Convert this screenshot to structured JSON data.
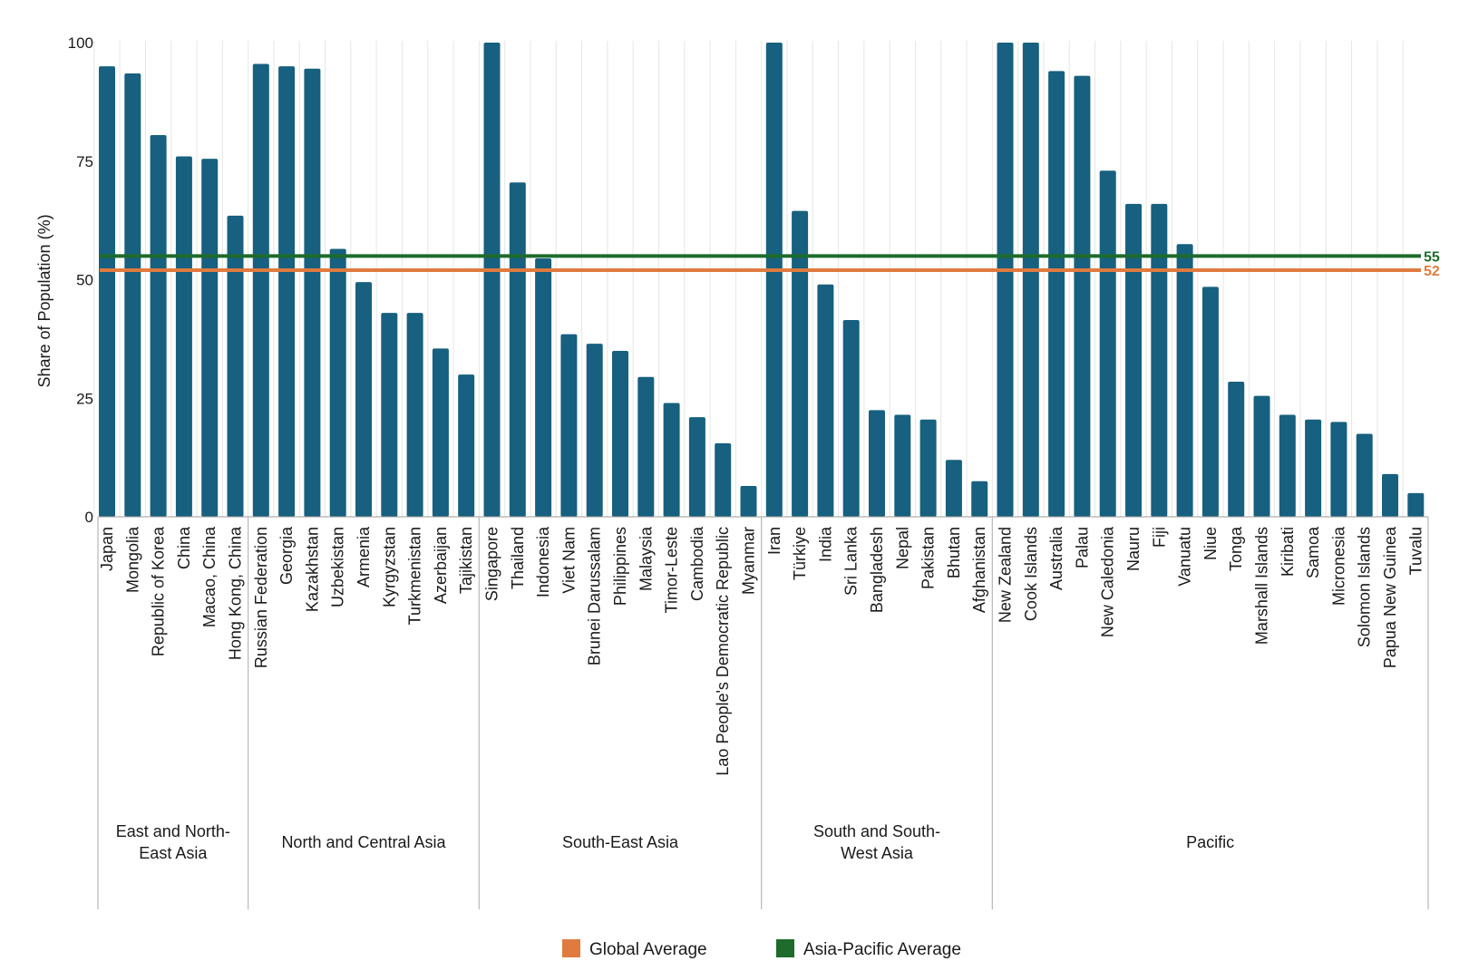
{
  "chart_data": {
    "type": "bar",
    "ylabel": "Share of Population (%)",
    "ylim": [
      0,
      100
    ],
    "yticks": [
      0,
      25,
      50,
      75,
      100
    ],
    "grid": "vertical",
    "bar_color": "#17607f",
    "groups": [
      {
        "name": "East and North-\nEast Asia",
        "categories": [
          "Japan",
          "Mongolia",
          "Republic of Korea",
          "China",
          "Macao, China",
          "Hong Kong, China"
        ],
        "values": [
          95,
          93.5,
          80.5,
          76,
          75.5,
          63.5
        ]
      },
      {
        "name": "North and Central Asia",
        "categories": [
          "Russian Federation",
          "Georgia",
          "Kazakhstan",
          "Uzbekistan",
          "Armenia",
          "Kyrgyzstan",
          "Turkmenistan",
          "Azerbaijan",
          "Tajikistan"
        ],
        "values": [
          95.5,
          95,
          94.5,
          56.5,
          49.5,
          43,
          43,
          35.5,
          30
        ]
      },
      {
        "name": "South-East Asia",
        "categories": [
          "Singapore",
          "Thailand",
          "Indonesia",
          "Viet Nam",
          "Brunei Darussalam",
          "Philippines",
          "Malaysia",
          "Timor-Leste",
          "Cambodia",
          "Lao People's Democratic Republic",
          "Myanmar"
        ],
        "values": [
          100,
          70.5,
          54.5,
          38.5,
          36.5,
          35,
          29.5,
          24,
          21,
          15.5,
          6.5
        ]
      },
      {
        "name": "South and South-\nWest Asia",
        "categories": [
          "Iran",
          "Türkiye",
          "India",
          "Sri Lanka",
          "Bangladesh",
          "Nepal",
          "Pakistan",
          "Bhutan",
          "Afghanistan"
        ],
        "values": [
          100,
          64.5,
          49,
          41.5,
          22.5,
          21.5,
          20.5,
          12,
          7.5
        ]
      },
      {
        "name": "Pacific",
        "categories": [
          "New Zealand",
          "Cook Islands",
          "Australia",
          "Palau",
          "New Caledonia",
          "Nauru",
          "Fiji",
          "Vanuatu",
          "Niue",
          "Tonga",
          "Marshall Islands",
          "Kiribati",
          "Samoa",
          "Micronesia",
          "Solomon Islands",
          "Papua New Guinea",
          "Tuvalu"
        ],
        "values": [
          100,
          100,
          94,
          93,
          73,
          66,
          66,
          57.5,
          48.5,
          28.5,
          25.5,
          21.5,
          20.5,
          20,
          17.5,
          9,
          5
        ]
      }
    ],
    "reference_lines": [
      {
        "name": "Asia-Pacific Average",
        "value": 55,
        "label": "55",
        "color": "#1e6b2c"
      },
      {
        "name": "Global Average",
        "value": 52,
        "label": "52",
        "color": "#e07b3f"
      }
    ],
    "legend": {
      "placement": "bottom",
      "entries": [
        {
          "label": "Global Average",
          "color": "#e07b3f"
        },
        {
          "label": "Asia-Pacific Average",
          "color": "#1e6b2c"
        }
      ]
    }
  }
}
